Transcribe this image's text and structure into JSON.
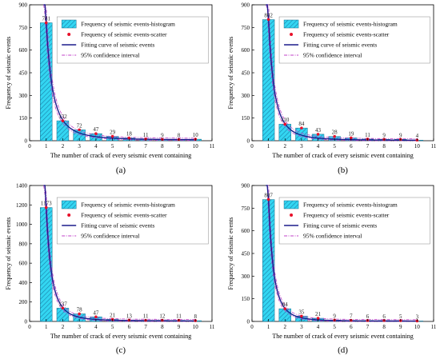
{
  "chart_data": [
    {
      "type": "bar",
      "panel_label": "(a)",
      "x": [
        1,
        2,
        3,
        4,
        5,
        6,
        7,
        8,
        9,
        10
      ],
      "values": [
        781,
        132,
        72,
        47,
        29,
        18,
        11,
        9,
        8,
        10
      ],
      "data_labels": [
        "781",
        "132",
        "72",
        "47",
        "29",
        "18",
        "11",
        "9",
        "8",
        "10"
      ],
      "xlabel": "The number of crack of every seismic event containing",
      "ylabel": "Frequency of seismic events",
      "xlim": [
        0,
        11
      ],
      "ylim": [
        0,
        900
      ],
      "xticks": [
        "0",
        "1",
        "2",
        "3",
        "4",
        "5",
        "6",
        "7",
        "8",
        "9",
        "10",
        "11"
      ],
      "yticks": [
        "0",
        "150",
        "300",
        "450",
        "600",
        "750",
        "900"
      ],
      "legend_position": "top-right",
      "series": [
        {
          "name": "Frequency of seismic events-histogram",
          "kind": "bar"
        },
        {
          "name": "Frequency of seismic events-scatter",
          "kind": "scatter"
        },
        {
          "name": "Fitting curve of seismic events",
          "kind": "line"
        },
        {
          "name": "95% confidence interval",
          "kind": "band"
        }
      ]
    },
    {
      "type": "bar",
      "panel_label": "(b)",
      "x": [
        1,
        2,
        3,
        4,
        5,
        6,
        7,
        8,
        9,
        10
      ],
      "values": [
        802,
        110,
        84,
        43,
        28,
        19,
        11,
        9,
        9,
        4
      ],
      "data_labels": [
        "802",
        "110",
        "84",
        "43",
        "28",
        "19",
        "11",
        "9",
        "9",
        "4"
      ],
      "xlabel": "The number of crack of every seismic event containing",
      "ylabel": "Frequency of seismic events",
      "xlim": [
        0,
        11
      ],
      "ylim": [
        0,
        900
      ],
      "xticks": [
        "0",
        "1",
        "2",
        "3",
        "4",
        "5",
        "6",
        "7",
        "8",
        "9",
        "10",
        "11"
      ],
      "yticks": [
        "0",
        "150",
        "300",
        "450",
        "600",
        "750",
        "900"
      ],
      "legend_position": "top-right",
      "series": [
        {
          "name": "Frequency of seismic events-histogram",
          "kind": "bar"
        },
        {
          "name": "Frequency of seismic events-scatter",
          "kind": "scatter"
        },
        {
          "name": "Fitting curve of seismic events",
          "kind": "line"
        },
        {
          "name": "95% confidence interval",
          "kind": "band"
        }
      ]
    },
    {
      "type": "bar",
      "panel_label": "(c)",
      "x": [
        1,
        2,
        3,
        4,
        5,
        6,
        7,
        8,
        9,
        10
      ],
      "values": [
        1173,
        137,
        78,
        47,
        21,
        13,
        11,
        12,
        11,
        8
      ],
      "data_labels": [
        "1173",
        "137",
        "78",
        "47",
        "21",
        "13",
        "11",
        "12",
        "11",
        "8"
      ],
      "xlabel": "The number of crack of every seismic event containing",
      "ylabel": "Frequency of seismic events",
      "xlim": [
        0,
        11
      ],
      "ylim": [
        0,
        1400
      ],
      "xticks": [
        "0",
        "1",
        "2",
        "3",
        "4",
        "5",
        "6",
        "7",
        "8",
        "9",
        "10",
        "11"
      ],
      "yticks": [
        "0",
        "200",
        "400",
        "600",
        "800",
        "1000",
        "1200",
        "1400"
      ],
      "legend_position": "top-right",
      "series": [
        {
          "name": "Frequency of seismic events-histogram",
          "kind": "bar"
        },
        {
          "name": "Frequency of seismic events-scatter",
          "kind": "scatter"
        },
        {
          "name": "Fitting curve of seismic events",
          "kind": "line"
        },
        {
          "name": "95% confidence interval",
          "kind": "band"
        }
      ]
    },
    {
      "type": "bar",
      "panel_label": "(d)",
      "x": [
        1,
        2,
        3,
        4,
        5,
        6,
        7,
        8,
        9,
        10
      ],
      "values": [
        807,
        84,
        35,
        21,
        9,
        7,
        6,
        6,
        5,
        3
      ],
      "data_labels": [
        "807",
        "84",
        "35",
        "21",
        "9",
        "7",
        "6",
        "6",
        "5",
        "3"
      ],
      "xlabel": "The number of crack of every seismic event containing",
      "ylabel": "Frequency of seismic events",
      "xlim": [
        0,
        11
      ],
      "ylim": [
        0,
        900
      ],
      "xticks": [
        "0",
        "1",
        "2",
        "3",
        "4",
        "5",
        "6",
        "7",
        "8",
        "9",
        "10",
        "11"
      ],
      "yticks": [
        "0",
        "150",
        "300",
        "450",
        "600",
        "750",
        "900"
      ],
      "legend_position": "top-right",
      "series": [
        {
          "name": "Frequency of seismic events-histogram",
          "kind": "bar"
        },
        {
          "name": "Frequency of seismic events-scatter",
          "kind": "scatter"
        },
        {
          "name": "Fitting curve of seismic events",
          "kind": "line"
        },
        {
          "name": "95% confidence interval",
          "kind": "band"
        }
      ]
    }
  ],
  "colors": {
    "bar_fill": "#33d6f2",
    "bar_hatch": "#1a7fa8",
    "scatter": "#e8102a",
    "fit_line": "#1c1c8c",
    "confidence": "#c040c8",
    "axis": "#000000"
  }
}
